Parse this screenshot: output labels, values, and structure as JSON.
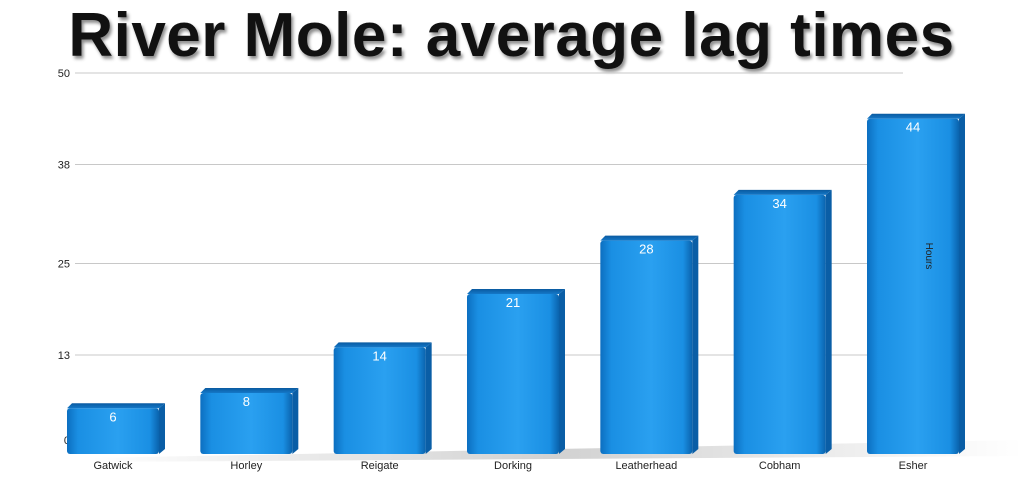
{
  "chart_data": {
    "type": "bar",
    "title": "River Mole: average lag times",
    "categories": [
      "Gatwick",
      "Horley",
      "Reigate",
      "Dorking",
      "Leatherhead",
      "Cobham",
      "Esher"
    ],
    "values": [
      6,
      8,
      14,
      21,
      28,
      34,
      44
    ],
    "y_ticks": [
      "0",
      "13",
      "25",
      "38",
      "50"
    ],
    "ylim": [
      0,
      50
    ],
    "ylabel": "Hours",
    "grid": true,
    "bar_color": "#1a8fe3"
  }
}
